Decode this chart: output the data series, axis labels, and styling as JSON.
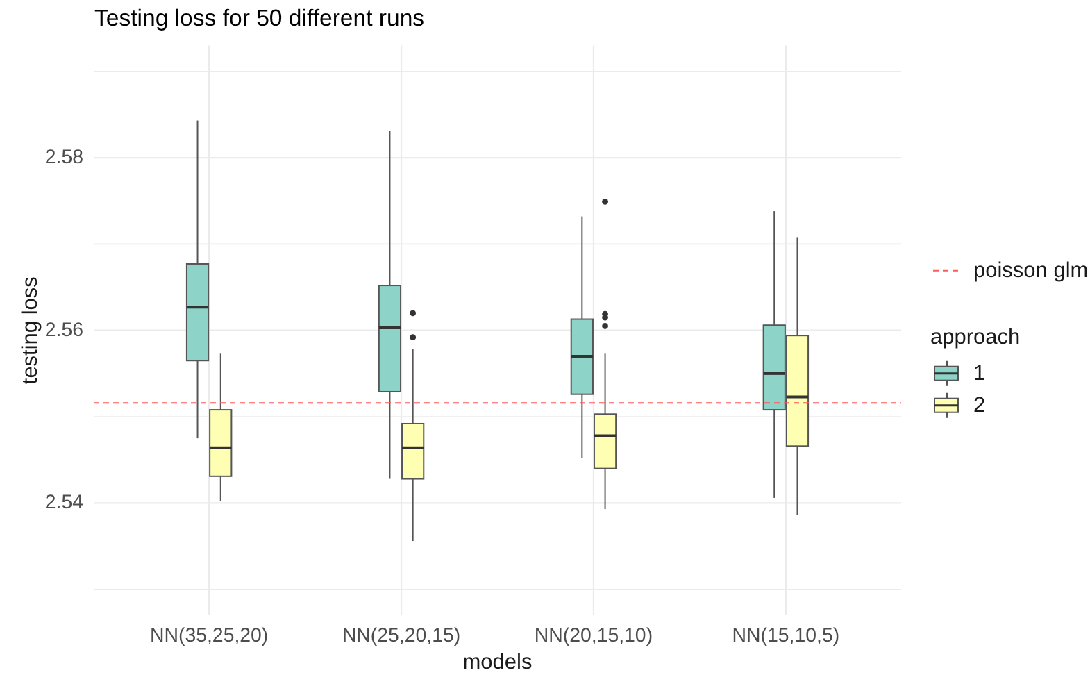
{
  "chart_data": {
    "type": "box",
    "title": "Testing loss for 50 different runs",
    "xlabel": "models",
    "ylabel": "testing loss",
    "legend_title": "approach",
    "categories": [
      "NN(35,25,20)",
      "NN(25,20,15)",
      "NN(20,15,10)",
      "NN(15,10,5)"
    ],
    "series": [
      {
        "name": "1",
        "color": "#8dd3c7",
        "boxes": [
          {
            "low": 2.5475,
            "q1": 2.5565,
            "median": 2.5627,
            "q3": 2.5677,
            "high": 2.5843
          },
          {
            "low": 2.5428,
            "q1": 2.5529,
            "median": 2.5603,
            "q3": 2.5652,
            "high": 2.5831
          },
          {
            "low": 2.5452,
            "q1": 2.5526,
            "median": 2.557,
            "q3": 2.5613,
            "high": 2.5732
          },
          {
            "low": 2.5406,
            "q1": 2.5508,
            "median": 2.555,
            "q3": 2.5606,
            "high": 2.5738
          }
        ]
      },
      {
        "name": "2",
        "color": "#ffffb3",
        "boxes": [
          {
            "low": 2.5402,
            "q1": 2.5431,
            "median": 2.5464,
            "q3": 2.5508,
            "high": 2.5573
          },
          {
            "low": 2.5356,
            "q1": 2.5428,
            "median": 2.5464,
            "q3": 2.5492,
            "high": 2.5578,
            "outliers": [
              2.562,
              2.5592
            ]
          },
          {
            "low": 2.5393,
            "q1": 2.544,
            "median": 2.5478,
            "q3": 2.5503,
            "high": 2.5573,
            "outliers": [
              2.5749,
              2.5619,
              2.5615,
              2.5605
            ]
          },
          {
            "low": 2.5386,
            "q1": 2.5466,
            "median": 2.5523,
            "q3": 2.5594,
            "high": 2.5708
          }
        ]
      }
    ],
    "ylim": [
      2.527,
      2.593
    ],
    "yticks": [
      {
        "value": 2.53,
        "label": null
      },
      2.54,
      {
        "value": 2.55,
        "label": null
      },
      2.56,
      {
        "value": 2.57,
        "label": null
      },
      2.58,
      {
        "value": 2.59,
        "label": null
      }
    ],
    "ref_lines": [
      {
        "axis": "y",
        "value": 2.5516,
        "label": "poisson glm",
        "color": "#ff5a5a",
        "line_style": "dashed"
      }
    ],
    "grid": true,
    "legend": "right"
  }
}
